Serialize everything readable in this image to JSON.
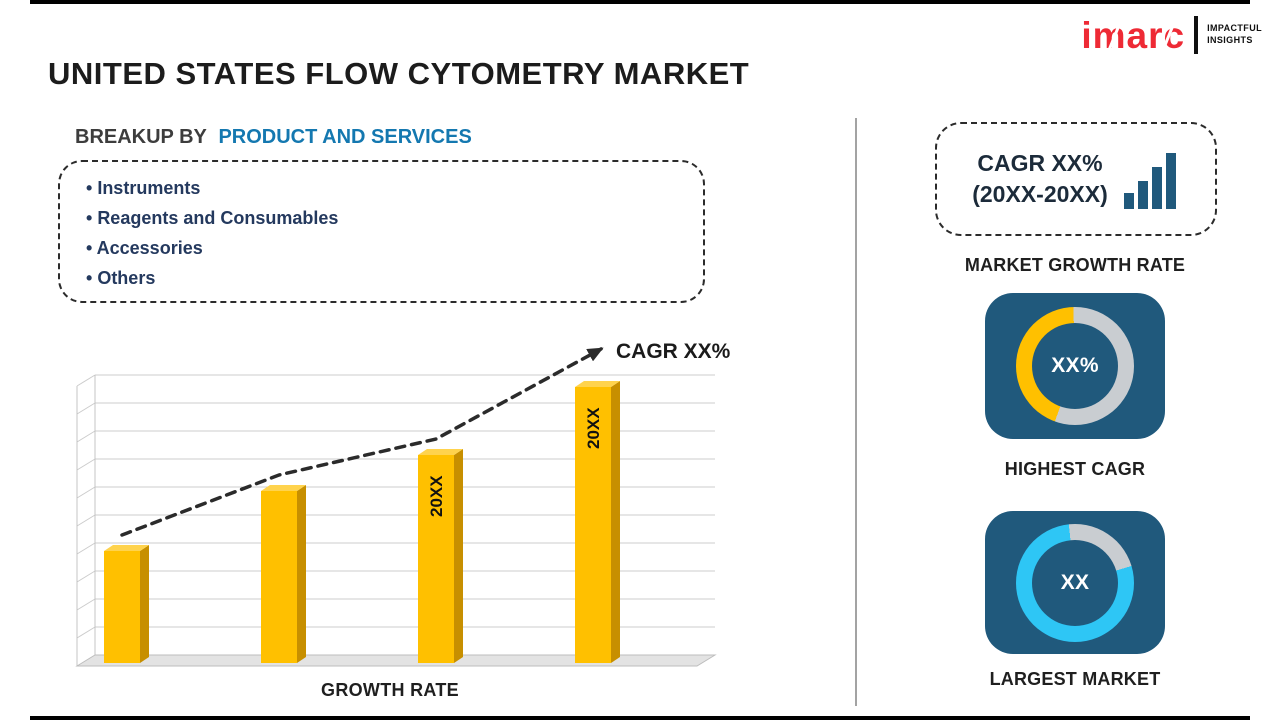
{
  "header": {
    "title": "UNITED STATES FLOW CYTOMETRY MARKET",
    "logo": {
      "brand": "imarc",
      "tagline1": "IMPACTFUL",
      "tagline2": "INSIGHTS"
    }
  },
  "breakup": {
    "heading_prefix": "BREAKUP BY",
    "heading_highlight": "PRODUCT AND SERVICES",
    "items": [
      "Instruments",
      "Reagents and Consumables",
      "Accessories",
      "Others"
    ]
  },
  "chart_data": {
    "type": "bar",
    "title": "Growth trend with CAGR arrow",
    "categories": [
      "",
      "",
      "20XX",
      "20XX"
    ],
    "values": [
      28,
      43,
      52,
      69
    ],
    "ylim": [
      0,
      90
    ],
    "grid": true,
    "legend": false,
    "bar_color": "#FFC000",
    "bar_side_color": "#C78F00",
    "bar_top_color": "#FFD34D",
    "trend_label": "CAGR XX%",
    "xlabel": "GROWTH RATE",
    "style": "3d-bars-with-dashed-trend-arrow"
  },
  "right_panel": {
    "growth_box": {
      "line1": "CAGR XX%",
      "line2": "(20XX-20XX)"
    },
    "growth_box_label": "MARKET GROWTH RATE",
    "highest_cagr": {
      "center_value": "XX%",
      "label": "HIGHEST CAGR",
      "ring": {
        "start_deg": 200,
        "seg1_color": "#FFC000",
        "seg1_pct": 44,
        "seg2_color": "#C9CDD1"
      }
    },
    "largest_market": {
      "center_value": "XX",
      "label": "LARGEST MARKET",
      "ring": {
        "start_deg": -6,
        "seg1_color": "#C9CDD1",
        "seg1_pct": 22,
        "seg2_color": "#2EC6F5"
      }
    }
  },
  "colors": {
    "accent_blue": "#1478B0",
    "navy_text": "#24395E",
    "tile_bg": "#20597C",
    "bar_yellow": "#FFC000",
    "logo_red": "#EE2A35"
  }
}
